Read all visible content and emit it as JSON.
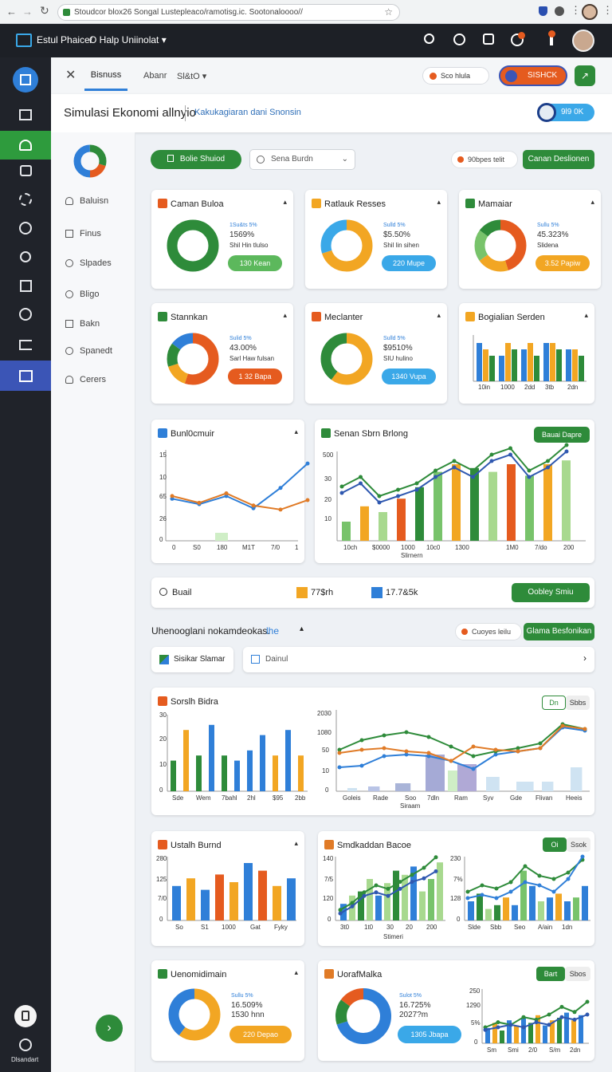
{
  "browser": {
    "url": "Stoudcor blox26 Songal Lustepleaco/ramotisg.ic. Sootonaloooo//"
  },
  "app": {
    "title": "Estul Phaice/",
    "subtitle": "O Halp Uniinolat"
  },
  "subnav": {
    "tab_active": "Bisnuss",
    "tab2": "Abanr",
    "tab3": "Sl&tO",
    "badge1": "Sco hlula",
    "badge2": "SISHCK"
  },
  "header": {
    "title": "Simulasi Ekonomi allnyio",
    "subtitle": "Kakukagiaran dani Snonsin",
    "action": "9l9 0K"
  },
  "leftpanel": {
    "items": [
      "Baluisn",
      "Finus",
      "Slpades",
      "Bligo",
      "Bakn",
      "Spanedt",
      "Cerers"
    ]
  },
  "sidebar": {
    "bottom_label": "Dlsandart"
  },
  "toolbar": {
    "primary": "Bolie Shuiod",
    "search_placeholder": "Sena Burdn",
    "chip": "90bpes  telit",
    "action": "Canan Deslionen"
  },
  "donuts_row1": [
    {
      "title": "Caman Buloa",
      "l1": "1Su&ts 5%",
      "l2": "1569%",
      "l3": "Shil Hin tlulso",
      "pill": "130 Kean",
      "pill_color": "#5cb85c",
      "segments": [
        {
          "v": 100,
          "c": "#2e8b3a"
        }
      ]
    },
    {
      "title": "Ratlauk Resses",
      "l1": "Sulld 5%",
      "l2": "$5.50%",
      "l3": "Shil lin sihen",
      "pill": "220 Mupe",
      "pill_color": "#3aa8e8",
      "segments": [
        {
          "v": 70,
          "c": "#f2a623"
        },
        {
          "v": 30,
          "c": "#3aa8e8"
        }
      ]
    },
    {
      "title": "Mamaiar",
      "l1": "Sullu 5%",
      "l2": "45.323%",
      "l3": "Slidena",
      "pill": "3.52 Papiw",
      "pill_color": "#f2a623",
      "segments": [
        {
          "v": 45,
          "c": "#e55b1f"
        },
        {
          "v": 20,
          "c": "#f2a623"
        },
        {
          "v": 20,
          "c": "#78c36b"
        },
        {
          "v": 15,
          "c": "#2e8b3a"
        }
      ]
    }
  ],
  "donuts_row2": [
    {
      "title": "Stannkan",
      "l1": "Sulid 5%",
      "l2": "43.00%",
      "l3": "Sarl Haw fulsan",
      "pill": "1 32 Bapa",
      "pill_color": "#e55b1f",
      "segments": [
        {
          "v": 55,
          "c": "#e55b1f"
        },
        {
          "v": 15,
          "c": "#f2a623"
        },
        {
          "v": 15,
          "c": "#2e8b3a"
        },
        {
          "v": 15,
          "c": "#2f7fd8"
        }
      ]
    },
    {
      "title": "Meclanter",
      "l1": "Sulld 5%",
      "l2": "$9510%",
      "l3": "SIU hulino",
      "pill": "1340 Vupa",
      "pill_color": "#3aa8e8",
      "segments": [
        {
          "v": 60,
          "c": "#f2a623"
        },
        {
          "v": 40,
          "c": "#2e8b3a"
        }
      ]
    }
  ],
  "bar_card": {
    "title": "Bogialian Serden",
    "x_labels": [
      "10in",
      "1000",
      "2dd",
      "3tb",
      "2dn"
    ]
  },
  "line_card": {
    "title": "Bunl0cmuir",
    "y_labels": [
      "15",
      "10",
      "65",
      "26",
      "0"
    ],
    "x_labels": [
      "0",
      "S0",
      "180",
      "M1T",
      "7/0",
      "1"
    ]
  },
  "combo_card": {
    "title": "Senan Sbrn Brlong",
    "button": "Bauai Dapre",
    "y_labels": [
      "500",
      "30",
      "20",
      "10"
    ],
    "x_labels": [
      "10ch",
      "$0000",
      "1000",
      "10c0",
      "1300",
      "1M0",
      "7/do",
      "200"
    ],
    "xlabel": "Slirnern"
  },
  "summary_bar": {
    "label": "Buail",
    "value1": "77$rh",
    "value2": "17.7&5k",
    "button": "Oobley Smiu"
  },
  "section": {
    "title": "Uhenooglani nokamdeokas.",
    "link": "lhe",
    "chip": "Cuoyes  leilu",
    "action": "Glama Besfonikan"
  },
  "filters": {
    "left": "Sisikar Slamar",
    "right": "Dainul"
  },
  "wide_card": {
    "title": "Sorslh Bidra",
    "toggle_on": "Dn",
    "toggle_off": "Sbbs",
    "y_labels_left": [
      "30",
      "20",
      "10",
      "0"
    ],
    "x_labels_left": [
      "Sde",
      "Wem",
      "7bahl",
      "2hl",
      "$95",
      "2bb"
    ],
    "y_labels_right": [
      "2030",
      "1080",
      "50",
      "10",
      "0"
    ],
    "x_labels_right": [
      "Goleis",
      "Rade",
      "Soo",
      "7dln",
      "Ram",
      "Syv",
      "Gde",
      "Flivan",
      "Heeis"
    ],
    "xlabel": "Siraam"
  },
  "chart_data": [
    {
      "type": "line",
      "title": "Bunl0cmuir",
      "x": [
        0,
        1,
        2,
        3,
        4,
        5
      ],
      "series": [
        {
          "values": [
            62,
            54,
            66,
            48,
            78,
            114
          ],
          "color": "#2f7fd8"
        },
        {
          "values": [
            66,
            56,
            70,
            52,
            46,
            60
          ],
          "color": "#e07b27"
        }
      ],
      "ylim": [
        0,
        130
      ]
    },
    {
      "type": "bar",
      "title": "Bogialian Serden",
      "series": [
        {
          "values": [
            6,
            4,
            5,
            6,
            5
          ],
          "color": "#2f7fd8"
        },
        {
          "values": [
            5,
            6,
            6,
            6,
            5
          ],
          "color": "#f2a623"
        },
        {
          "values": [
            4,
            5,
            4,
            5,
            4
          ],
          "color": "#2e8b3a"
        }
      ]
    },
    {
      "type": "bar",
      "title": "Senan Sbrn Brlong",
      "values": [
        10,
        18,
        15,
        22,
        28,
        36,
        40,
        38,
        36,
        40,
        34,
        40,
        42
      ],
      "line": [
        34,
        40,
        28,
        32,
        36,
        44,
        50,
        44,
        54,
        58,
        44,
        50,
        60
      ]
    },
    {
      "type": "bar",
      "title": "Sorslh Bidra",
      "values": [
        12,
        24,
        14,
        26,
        14,
        12,
        16,
        22,
        14,
        24,
        14
      ]
    },
    {
      "type": "line",
      "title": "Sorslh Bidra right",
      "series": [
        {
          "values": [
            40,
            42,
            54,
            56,
            54,
            48,
            38,
            56,
            60,
            64,
            90,
            86
          ],
          "color": "#2f7fd8"
        },
        {
          "values": [
            62,
            74,
            80,
            84,
            78,
            66,
            54,
            60,
            64,
            70,
            94,
            88
          ],
          "color": "#2e8b3a"
        }
      ]
    },
    {
      "type": "bar",
      "title": "Ustalh Burnd",
      "values": [
        18,
        22,
        16,
        24,
        20,
        30,
        26,
        18,
        22
      ]
    },
    {
      "type": "bar",
      "title": "Smdkaddan Bacoe",
      "values": [
        8,
        12,
        14,
        20,
        12,
        18,
        24,
        22,
        26,
        14,
        20,
        28
      ]
    }
  ],
  "bottom_left_bar": {
    "title": "Ustalh Burnd",
    "y_labels": [
      "280",
      "125",
      "7/0",
      "0"
    ],
    "x_labels": [
      "So",
      "S1",
      "1000",
      "Gat",
      "Fyky"
    ]
  },
  "bottom_right_bar": {
    "title": "Smdkaddan Bacoe",
    "toggle_on": "Oi",
    "toggle_off": "Ssok",
    "y_labels": [
      "140",
      "7/5",
      "120",
      "0"
    ],
    "x_labels": [
      "3t0",
      "1t0",
      "30",
      "20",
      "200"
    ],
    "xlabel": "Stimeri",
    "y2_labels": [
      "230",
      "7%",
      "128",
      "0"
    ],
    "x2_labels": [
      "Slde",
      "Sbb",
      "Seo",
      "A/ain",
      "1dn"
    ]
  },
  "bottom_donut_left": {
    "title": "Uenomidimain",
    "l1": "Sullu 5%",
    "l2": "16.509%",
    "l3": "1530 hnn",
    "pill": "220 Depao",
    "pill_color": "#f2a623",
    "segments": [
      {
        "v": 60,
        "c": "#f2a623"
      },
      {
        "v": 40,
        "c": "#2f7fd8"
      }
    ]
  },
  "bottom_donut_right": {
    "title": "UorafMalka",
    "toggle_on": "Bart",
    "toggle_off": "Sbos",
    "l1": "Sulot 5%",
    "l2": "16.725%",
    "l3": "2027?m",
    "pill": "1305 Jbapa",
    "pill_color": "#3aa8e8",
    "segments": [
      {
        "v": 70,
        "c": "#2f7fd8"
      },
      {
        "v": 15,
        "c": "#2e8b3a"
      },
      {
        "v": 15,
        "c": "#e55b1f"
      }
    ],
    "y_labels": [
      "250",
      "1290",
      "5%",
      "0"
    ],
    "x_labels": [
      "Sm",
      "Smi",
      "2/0",
      "S/m",
      "2dn"
    ]
  }
}
